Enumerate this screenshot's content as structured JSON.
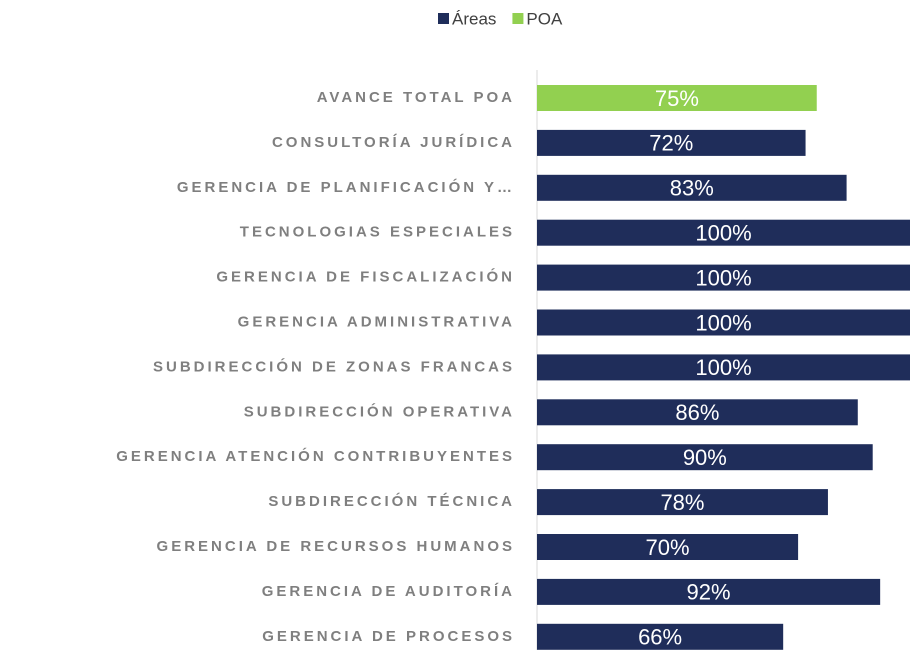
{
  "chart_data": {
    "type": "bar",
    "orientation": "horizontal",
    "categories": [
      "AVANCE TOTAL POA",
      "CONSULTORÍA JURÍDICA",
      "GERENCIA DE PLANIFICACIÓN Y…",
      "TECNOLOGIAS ESPECIALES",
      "GERENCIA DE FISCALIZACIÓN ",
      "GERENCIA ADMINISTRATIVA",
      "SUBDIRECCIÓN DE ZONAS FRANCAS",
      "SUBDIRECCIÓN OPERATIVA",
      "GERENCIA ATENCIÓN CONTRIBUYENTES",
      "SUBDIRECCIÓN TÉCNICA",
      "GERENCIA DE RECURSOS HUMANOS",
      "GERENCIA DE AUDITORÍA",
      "GERENCIA DE PROCESOS"
    ],
    "series": [
      {
        "name": "Áreas",
        "color": "#1f2d5a",
        "values": [
          null,
          72,
          83,
          100,
          100,
          100,
          100,
          86,
          90,
          78,
          70,
          92,
          66
        ],
        "value_labels": [
          null,
          "72%",
          "83%",
          "100%",
          "100%",
          "100%",
          "100%",
          "86%",
          "90%",
          "78%",
          "70%",
          "92%",
          "66%"
        ]
      },
      {
        "name": "POA",
        "color": "#92d050",
        "values": [
          75,
          null,
          null,
          null,
          null,
          null,
          null,
          null,
          null,
          null,
          null,
          null,
          null
        ],
        "value_labels": [
          "75%",
          null,
          null,
          null,
          null,
          null,
          null,
          null,
          null,
          null,
          null,
          null,
          null
        ]
      }
    ],
    "xlim": [
      0,
      100
    ],
    "legend": "top"
  }
}
